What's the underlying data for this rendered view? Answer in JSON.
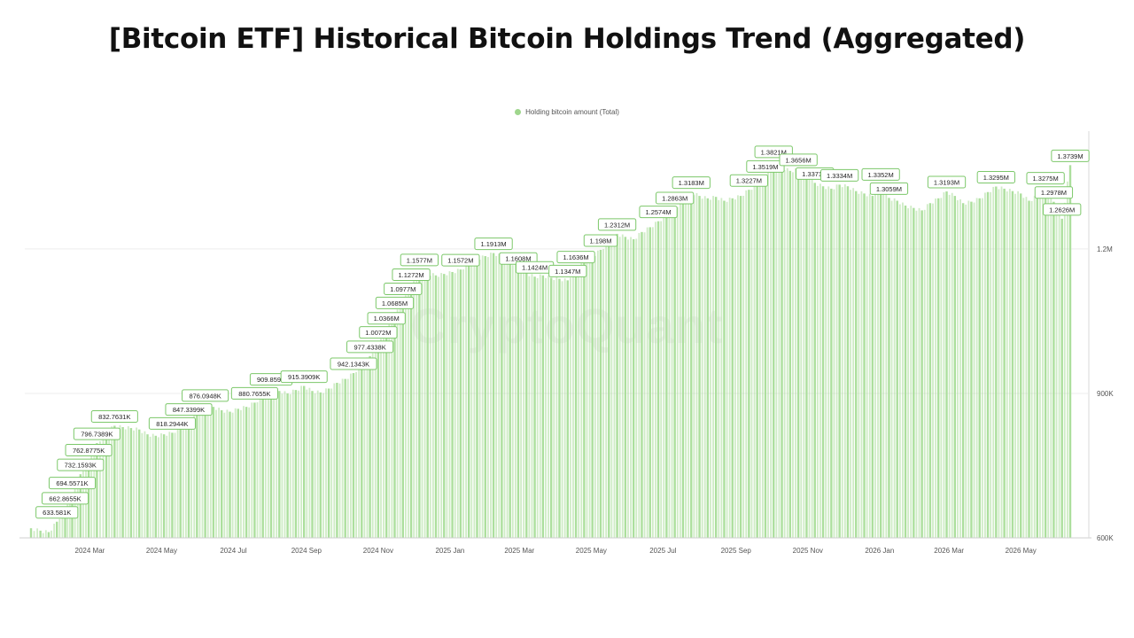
{
  "title": "[Bitcoin ETF] Historical Bitcoin Holdings Trend (Aggregated)",
  "watermark": "CryptoQuant",
  "colors": {
    "bar": "#a8dd98",
    "label_border": "#7cc86a",
    "legend_dot": "#9fd68d",
    "grid": "#eeeeee"
  },
  "chart_data": {
    "type": "bar",
    "legend": [
      "Holding bitcoin amount (Total)"
    ],
    "legend_placement": "top-center",
    "grid": true,
    "y_axis_side": "right",
    "ylim": [
      600000,
      1450000
    ],
    "yticks": [
      {
        "value": 600000,
        "label": "600K"
      },
      {
        "value": 900000,
        "label": "900K"
      },
      {
        "value": 1200000,
        "label": "1.2M"
      }
    ],
    "xlim": [
      "2024-01-11",
      "2026-06-15"
    ],
    "xticks": [
      {
        "date": "2024-03-01",
        "label": "2024 Mar"
      },
      {
        "date": "2024-05-01",
        "label": "2024 May"
      },
      {
        "date": "2024-07-01",
        "label": "2024 Jul"
      },
      {
        "date": "2024-09-01",
        "label": "2024 Sep"
      },
      {
        "date": "2024-11-01",
        "label": "2024 Nov"
      },
      {
        "date": "2025-01-01",
        "label": "2025 Jan"
      },
      {
        "date": "2025-03-01",
        "label": "2025 Mar"
      },
      {
        "date": "2025-05-01",
        "label": "2025 May"
      },
      {
        "date": "2025-07-01",
        "label": "2025 Jul"
      },
      {
        "date": "2025-09-01",
        "label": "2025 Sep"
      },
      {
        "date": "2025-11-01",
        "label": "2025 Nov"
      },
      {
        "date": "2026-01-01",
        "label": "2026 Jan"
      },
      {
        "date": "2026-03-01",
        "label": "2026 Mar"
      },
      {
        "date": "2026-05-01",
        "label": "2026 May"
      }
    ],
    "series": [
      {
        "name": "Holding bitcoin amount (Total)",
        "points": [
          {
            "x": "2024-01-11",
            "y": 620000
          },
          {
            "x": "2024-01-19",
            "y": 615000
          },
          {
            "x": "2024-01-26",
            "y": 612000
          },
          {
            "x": "2024-02-02",
            "y": 633581,
            "label": "633.581K"
          },
          {
            "x": "2024-02-09",
            "y": 662866,
            "label": "662.8655K"
          },
          {
            "x": "2024-02-15",
            "y": 694557,
            "label": "694.5571K"
          },
          {
            "x": "2024-02-22",
            "y": 732159,
            "label": "732.1593K"
          },
          {
            "x": "2024-02-29",
            "y": 762878,
            "label": "762.8775K"
          },
          {
            "x": "2024-03-07",
            "y": 796739,
            "label": "796.7389K"
          },
          {
            "x": "2024-03-15",
            "y": 820000
          },
          {
            "x": "2024-03-22",
            "y": 832763,
            "label": "832.7631K"
          },
          {
            "x": "2024-03-29",
            "y": 830000
          },
          {
            "x": "2024-04-05",
            "y": 828000
          },
          {
            "x": "2024-04-12",
            "y": 825000
          },
          {
            "x": "2024-04-19",
            "y": 815000
          },
          {
            "x": "2024-04-26",
            "y": 812000
          },
          {
            "x": "2024-05-03",
            "y": 815000
          },
          {
            "x": "2024-05-10",
            "y": 818294,
            "label": "818.2944K"
          },
          {
            "x": "2024-05-17",
            "y": 830000
          },
          {
            "x": "2024-05-24",
            "y": 847340,
            "label": "847.3399K"
          },
          {
            "x": "2024-05-31",
            "y": 860000
          },
          {
            "x": "2024-06-07",
            "y": 876095,
            "label": "876.0948K"
          },
          {
            "x": "2024-06-14",
            "y": 872000
          },
          {
            "x": "2024-06-21",
            "y": 865000
          },
          {
            "x": "2024-06-28",
            "y": 862000
          },
          {
            "x": "2024-07-05",
            "y": 868000
          },
          {
            "x": "2024-07-12",
            "y": 872000
          },
          {
            "x": "2024-07-19",
            "y": 880766,
            "label": "880.7655K"
          },
          {
            "x": "2024-07-26",
            "y": 895000
          },
          {
            "x": "2024-08-02",
            "y": 909859,
            "label": "909.859K"
          },
          {
            "x": "2024-08-09",
            "y": 905000
          },
          {
            "x": "2024-08-16",
            "y": 900000
          },
          {
            "x": "2024-08-23",
            "y": 907000
          },
          {
            "x": "2024-08-30",
            "y": 915391,
            "label": "915.3909K"
          },
          {
            "x": "2024-09-06",
            "y": 905000
          },
          {
            "x": "2024-09-13",
            "y": 902000
          },
          {
            "x": "2024-09-20",
            "y": 910000
          },
          {
            "x": "2024-09-27",
            "y": 922000
          },
          {
            "x": "2024-10-04",
            "y": 930000
          },
          {
            "x": "2024-10-11",
            "y": 942134,
            "label": "942.1343K"
          },
          {
            "x": "2024-10-18",
            "y": 960000
          },
          {
            "x": "2024-10-25",
            "y": 977434,
            "label": "977.4338K"
          },
          {
            "x": "2024-11-01",
            "y": 1007200,
            "label": "1.0072M"
          },
          {
            "x": "2024-11-08",
            "y": 1036600,
            "label": "1.0366M"
          },
          {
            "x": "2024-11-15",
            "y": 1068500,
            "label": "1.0685M"
          },
          {
            "x": "2024-11-22",
            "y": 1097700,
            "label": "1.0977M"
          },
          {
            "x": "2024-11-29",
            "y": 1127200,
            "label": "1.1272M"
          },
          {
            "x": "2024-12-06",
            "y": 1157700,
            "label": "1.1577M"
          },
          {
            "x": "2024-12-13",
            "y": 1150000
          },
          {
            "x": "2024-12-20",
            "y": 1145000
          },
          {
            "x": "2024-12-27",
            "y": 1148000
          },
          {
            "x": "2025-01-03",
            "y": 1152000
          },
          {
            "x": "2025-01-10",
            "y": 1157200,
            "label": "1.1572M"
          },
          {
            "x": "2025-01-17",
            "y": 1170000
          },
          {
            "x": "2025-01-24",
            "y": 1180000
          },
          {
            "x": "2025-01-31",
            "y": 1185000
          },
          {
            "x": "2025-02-07",
            "y": 1191300,
            "label": "1.1913M"
          },
          {
            "x": "2025-02-14",
            "y": 1185000
          },
          {
            "x": "2025-02-21",
            "y": 1175000
          },
          {
            "x": "2025-02-28",
            "y": 1160800,
            "label": "1.1608M"
          },
          {
            "x": "2025-03-07",
            "y": 1150000
          },
          {
            "x": "2025-03-14",
            "y": 1142400,
            "label": "1.1424M"
          },
          {
            "x": "2025-03-21",
            "y": 1145000
          },
          {
            "x": "2025-03-28",
            "y": 1140000
          },
          {
            "x": "2025-04-04",
            "y": 1138000
          },
          {
            "x": "2025-04-11",
            "y": 1134700,
            "label": "1.1347M"
          },
          {
            "x": "2025-04-18",
            "y": 1163600,
            "label": "1.1636M"
          },
          {
            "x": "2025-04-25",
            "y": 1175000
          },
          {
            "x": "2025-05-02",
            "y": 1185000
          },
          {
            "x": "2025-05-09",
            "y": 1198000,
            "label": "1.198M"
          },
          {
            "x": "2025-05-16",
            "y": 1215000
          },
          {
            "x": "2025-05-23",
            "y": 1231200,
            "label": "1.2312M"
          },
          {
            "x": "2025-05-30",
            "y": 1225000
          },
          {
            "x": "2025-06-06",
            "y": 1220000
          },
          {
            "x": "2025-06-13",
            "y": 1235000
          },
          {
            "x": "2025-06-20",
            "y": 1245000
          },
          {
            "x": "2025-06-27",
            "y": 1257400,
            "label": "1.2574M"
          },
          {
            "x": "2025-07-04",
            "y": 1270000
          },
          {
            "x": "2025-07-11",
            "y": 1286300,
            "label": "1.2863M"
          },
          {
            "x": "2025-07-18",
            "y": 1300000
          },
          {
            "x": "2025-07-25",
            "y": 1318300,
            "label": "1.3183M"
          },
          {
            "x": "2025-08-01",
            "y": 1310000
          },
          {
            "x": "2025-08-08",
            "y": 1305000
          },
          {
            "x": "2025-08-15",
            "y": 1308000
          },
          {
            "x": "2025-08-22",
            "y": 1300000
          },
          {
            "x": "2025-08-29",
            "y": 1305000
          },
          {
            "x": "2025-09-05",
            "y": 1310000
          },
          {
            "x": "2025-09-12",
            "y": 1322700,
            "label": "1.3227M"
          },
          {
            "x": "2025-09-19",
            "y": 1335000
          },
          {
            "x": "2025-09-26",
            "y": 1351900,
            "label": "1.3519M"
          },
          {
            "x": "2025-10-03",
            "y": 1382100,
            "label": "1.3821M"
          },
          {
            "x": "2025-10-10",
            "y": 1370000
          },
          {
            "x": "2025-10-17",
            "y": 1362000
          },
          {
            "x": "2025-10-24",
            "y": 1365600,
            "label": "1.3656M"
          },
          {
            "x": "2025-10-31",
            "y": 1355000
          },
          {
            "x": "2025-11-07",
            "y": 1337100,
            "label": "1.3371M"
          },
          {
            "x": "2025-11-14",
            "y": 1330000
          },
          {
            "x": "2025-11-21",
            "y": 1325000
          },
          {
            "x": "2025-11-28",
            "y": 1333400,
            "label": "1.3334M"
          },
          {
            "x": "2025-12-05",
            "y": 1330000
          },
          {
            "x": "2025-12-12",
            "y": 1320000
          },
          {
            "x": "2025-12-19",
            "y": 1315000
          },
          {
            "x": "2025-12-26",
            "y": 1310000
          },
          {
            "x": "2026-01-02",
            "y": 1335200,
            "label": "1.3352M"
          },
          {
            "x": "2026-01-09",
            "y": 1305900,
            "label": "1.3059M"
          },
          {
            "x": "2026-01-16",
            "y": 1300000
          },
          {
            "x": "2026-01-23",
            "y": 1290000
          },
          {
            "x": "2026-01-30",
            "y": 1285000
          },
          {
            "x": "2026-02-06",
            "y": 1280000
          },
          {
            "x": "2026-02-13",
            "y": 1295000
          },
          {
            "x": "2026-02-20",
            "y": 1305000
          },
          {
            "x": "2026-02-27",
            "y": 1319300,
            "label": "1.3193M"
          },
          {
            "x": "2026-03-06",
            "y": 1310000
          },
          {
            "x": "2026-03-13",
            "y": 1295000
          },
          {
            "x": "2026-03-20",
            "y": 1298000
          },
          {
            "x": "2026-03-27",
            "y": 1305000
          },
          {
            "x": "2026-04-03",
            "y": 1318000
          },
          {
            "x": "2026-04-10",
            "y": 1329500,
            "label": "1.3295M"
          },
          {
            "x": "2026-04-17",
            "y": 1325000
          },
          {
            "x": "2026-04-24",
            "y": 1320000
          },
          {
            "x": "2026-05-01",
            "y": 1315000
          },
          {
            "x": "2026-05-08",
            "y": 1300000
          },
          {
            "x": "2026-05-15",
            "y": 1310000
          },
          {
            "x": "2026-05-22",
            "y": 1327500,
            "label": "1.3275M"
          },
          {
            "x": "2026-05-29",
            "y": 1297800,
            "label": "1.2978M"
          },
          {
            "x": "2026-06-05",
            "y": 1262600,
            "label": "1.2626M"
          },
          {
            "x": "2026-06-12",
            "y": 1373900,
            "label": "1.3739M"
          }
        ]
      }
    ]
  }
}
